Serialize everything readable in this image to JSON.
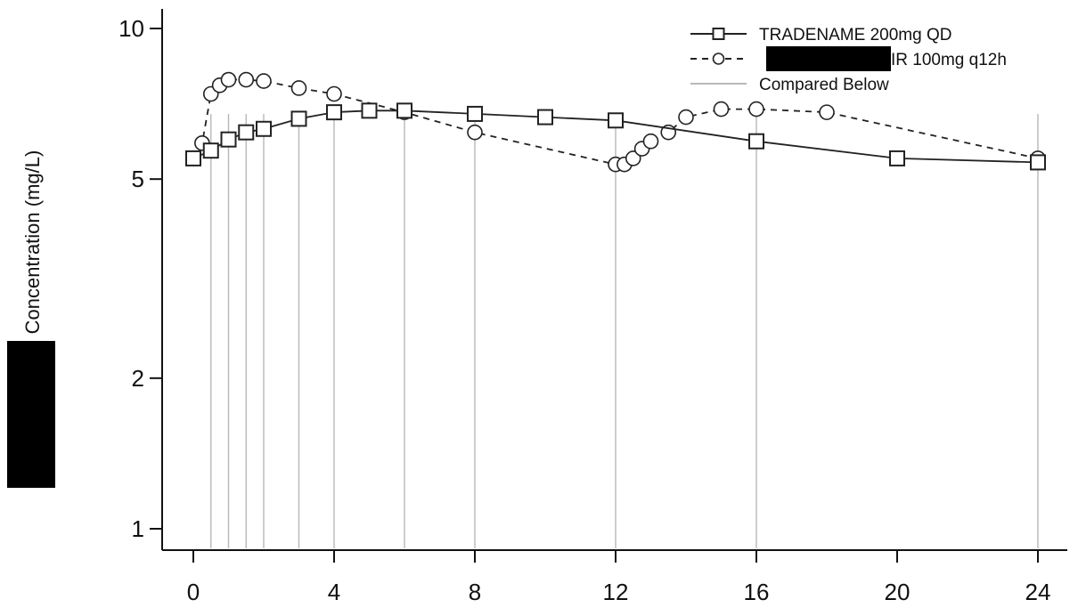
{
  "chart_data": {
    "type": "line",
    "title": "",
    "xlabel": "",
    "ylabel": "Concentration (mg/L)",
    "x_scale": "linear",
    "y_scale": "log",
    "xlim": [
      0,
      24
    ],
    "ylim": [
      1,
      10
    ],
    "x_ticks": [
      0,
      4,
      8,
      12,
      16,
      20,
      24
    ],
    "y_ticks": [
      1,
      2,
      5,
      10
    ],
    "grid": false,
    "legend_position": "top-right",
    "series": [
      {
        "name": "TRADENAME 200mg QD",
        "marker": "square",
        "line_style": "solid",
        "color": "#222222",
        "x": [
          0,
          0.5,
          1,
          1.5,
          2,
          3,
          4,
          5,
          6,
          8,
          10,
          12,
          16,
          20,
          24
        ],
        "y": [
          5.5,
          5.7,
          6.0,
          6.2,
          6.3,
          6.6,
          6.8,
          6.85,
          6.85,
          6.75,
          6.65,
          6.55,
          5.95,
          5.5,
          5.4
        ]
      },
      {
        "name": "IR 100mg q12h",
        "marker": "circle",
        "line_style": "dashed",
        "color": "#222222",
        "x": [
          0,
          0.25,
          0.5,
          0.75,
          1,
          1.5,
          2,
          3,
          4,
          6,
          8,
          12,
          12.25,
          12.5,
          12.75,
          13,
          13.5,
          14,
          15,
          16,
          18,
          24
        ],
        "y": [
          5.5,
          5.9,
          7.4,
          7.7,
          7.9,
          7.9,
          7.85,
          7.6,
          7.4,
          6.8,
          6.2,
          5.35,
          5.35,
          5.5,
          5.75,
          5.95,
          6.2,
          6.65,
          6.9,
          6.9,
          6.8,
          5.5
        ]
      }
    ],
    "reference_lines": {
      "label": "Compared Below",
      "color": "#b8b8b8",
      "x": [
        0.5,
        1,
        1.5,
        2,
        3,
        4,
        6,
        8,
        12,
        16,
        24
      ]
    }
  }
}
